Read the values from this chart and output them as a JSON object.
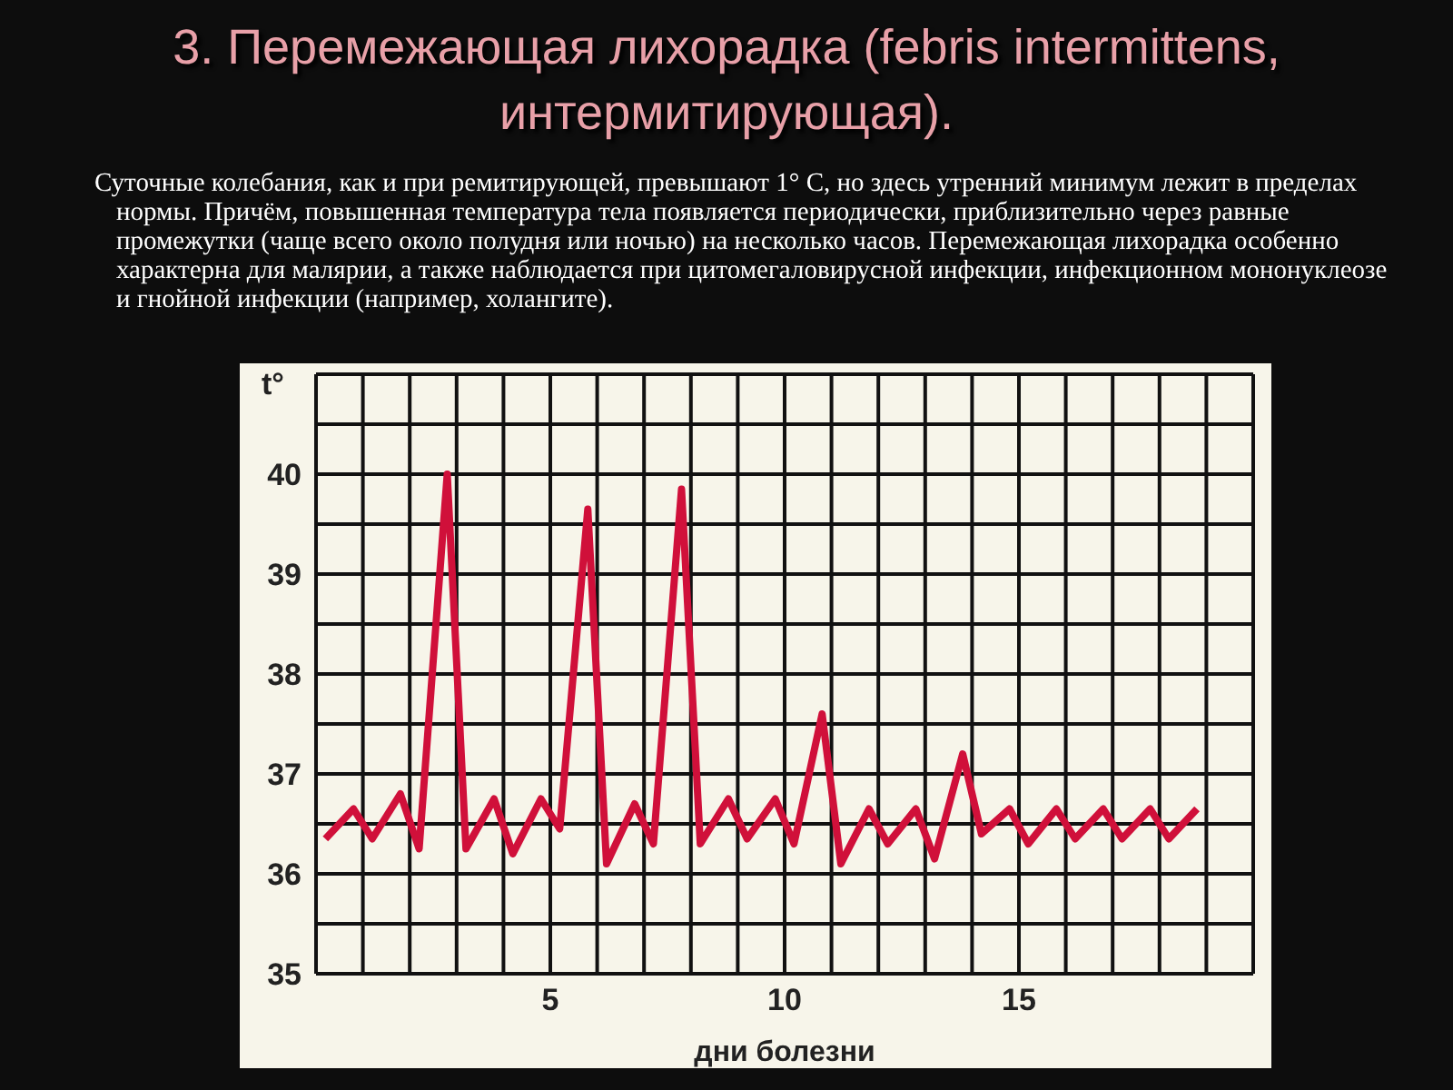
{
  "chart_data": {
    "type": "line",
    "title": "3. Перемежающая лихорадка (febris intermittens, интермитирующая).",
    "subtitle": "Суточные колебания, как и при ремитирующей, превышают 1° С, но здесь утренний минимум лежит в пределах нормы. Причём, повышенная температура тела появляется периодически, приблизительно через равные промежутки (чаще всего около полудня или ночью) на несколько часов. Перемежающая лихорадка особенно характерна для малярии, а также наблюдается при цитомегаловирусной инфекции, инфекционном мононуклеозе и гнойной инфекции (например, холангите).",
    "xlabel": "дни болезни",
    "ylabel": "t°",
    "x": [
      0.2,
      0.8,
      1.2,
      1.8,
      2.2,
      2.8,
      3.2,
      3.8,
      4.2,
      4.8,
      5.2,
      5.8,
      6.2,
      6.8,
      7.2,
      7.8,
      8.2,
      8.8,
      9.2,
      9.8,
      10.2,
      10.8,
      11.2,
      11.8,
      12.2,
      12.8,
      13.2,
      13.8,
      14.2,
      14.8,
      15.2,
      15.8,
      16.2,
      16.8,
      17.2,
      17.8,
      18.2,
      18.8
    ],
    "series": [
      {
        "color": "#d0103a",
        "values": [
          36.35,
          36.65,
          36.35,
          36.8,
          36.25,
          40.0,
          36.25,
          36.75,
          36.2,
          36.75,
          36.45,
          39.65,
          36.1,
          36.7,
          36.3,
          39.85,
          36.3,
          36.75,
          36.35,
          36.75,
          36.3,
          37.6,
          36.1,
          36.65,
          36.3,
          36.65,
          36.15,
          37.2,
          36.4,
          36.65,
          36.3,
          36.65,
          36.35,
          36.65,
          36.35,
          36.65,
          36.35,
          36.65
        ]
      }
    ],
    "xlim": [
      0,
      20
    ],
    "xticks": [
      {
        "value": 0,
        "label": null
      },
      {
        "value": 1,
        "label": null
      },
      {
        "value": 2,
        "label": null
      },
      {
        "value": 3,
        "label": null
      },
      {
        "value": 4,
        "label": null
      },
      5,
      {
        "value": 6,
        "label": null
      },
      {
        "value": 7,
        "label": null
      },
      {
        "value": 8,
        "label": null
      },
      {
        "value": 9,
        "label": null
      },
      10,
      {
        "value": 11,
        "label": null
      },
      {
        "value": 12,
        "label": null
      },
      {
        "value": 13,
        "label": null
      },
      {
        "value": 14,
        "label": null
      },
      15,
      {
        "value": 16,
        "label": null
      },
      {
        "value": 17,
        "label": null
      },
      {
        "value": 18,
        "label": null
      },
      {
        "value": 19,
        "label": null
      },
      {
        "value": 20,
        "label": null
      }
    ],
    "ylim": [
      35,
      41
    ],
    "yticks": [
      35,
      {
        "value": 35.5,
        "label": null
      },
      36,
      {
        "value": 36.5,
        "label": null
      },
      37,
      {
        "value": 37.5,
        "label": null
      },
      38,
      {
        "value": 38.5,
        "label": null
      },
      39,
      {
        "value": 39.5,
        "label": null
      },
      40,
      {
        "value": 40.5,
        "label": null
      },
      {
        "value": 41,
        "label": null
      }
    ],
    "grid": true
  }
}
